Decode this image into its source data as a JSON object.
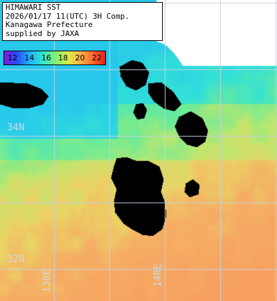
{
  "info": {
    "line1": "HIMAWARI SST",
    "line2": "2026/01/17 11(UTC) 3H Comp.",
    "line3": "Kanagawa Prefecture",
    "line4": "supplied by JAXA"
  },
  "legend": {
    "ticks": [
      "12",
      "14",
      "16",
      "18",
      "20",
      "22"
    ],
    "gradient_colors": [
      "#7a1fd6",
      "#2a4bff",
      "#1fb0ff",
      "#2ee6d2",
      "#7cf07a",
      "#d8ee4a",
      "#ffb347",
      "#ff6a2e",
      "#e81e1e"
    ]
  },
  "grid": {
    "latitudes": [
      "34N",
      "32N"
    ],
    "longitudes": [
      "138E",
      "140E"
    ]
  },
  "colors": {
    "land": "#000000",
    "grid": "#c8d0e0",
    "coast_cold": "#35d8e0",
    "warm": "#f4a860"
  }
}
